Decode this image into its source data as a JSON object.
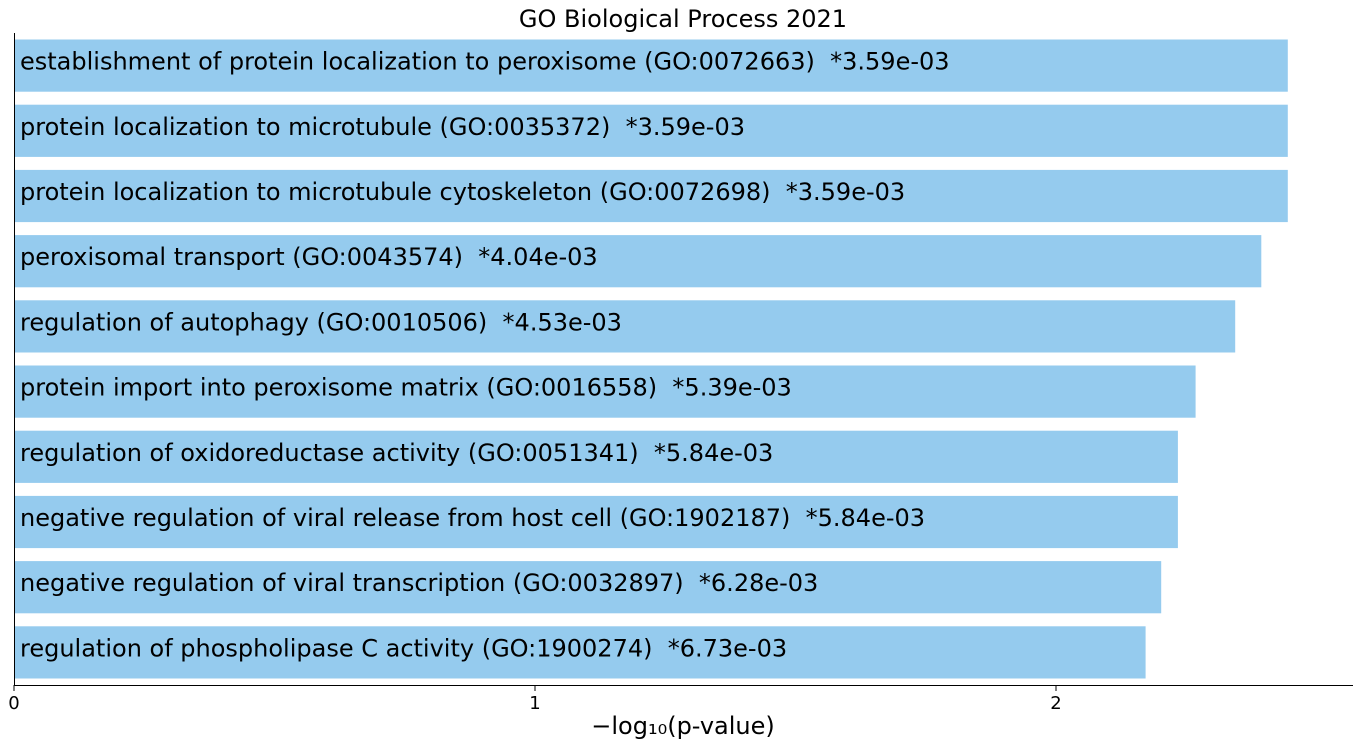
{
  "chart_data": {
    "type": "bar",
    "orientation": "horizontal",
    "title": "GO Biological Process 2021",
    "xlabel": "−log₁₀(p-value)",
    "ylabel": "",
    "xlim": [
      0,
      2.57
    ],
    "xticks": [
      0,
      1,
      2
    ],
    "xtick_labels": [
      "0",
      "1",
      "2"
    ],
    "grid": false,
    "bar_color": "#95CBEE",
    "categories": [
      "establishment of protein localization to peroxisome (GO:0072663)  *3.59e-03",
      "protein localization to microtubule (GO:0035372)  *3.59e-03",
      "protein localization to microtubule cytoskeleton (GO:0072698)  *3.59e-03",
      "peroxisomal transport (GO:0043574)  *4.04e-03",
      "regulation of autophagy (GO:0010506)  *4.53e-03",
      "protein import into peroxisome matrix (GO:0016558)  *5.39e-03",
      "regulation of oxidoreductase activity (GO:0051341)  *5.84e-03",
      "negative regulation of viral release from host cell (GO:1902187)  *5.84e-03",
      "negative regulation of viral transcription (GO:0032897)  *6.28e-03",
      "regulation of phospholipase C activity (GO:1900274)  *6.73e-03"
    ],
    "values": [
      2.445,
      2.445,
      2.445,
      2.394,
      2.344,
      2.268,
      2.234,
      2.234,
      2.202,
      2.172
    ]
  }
}
